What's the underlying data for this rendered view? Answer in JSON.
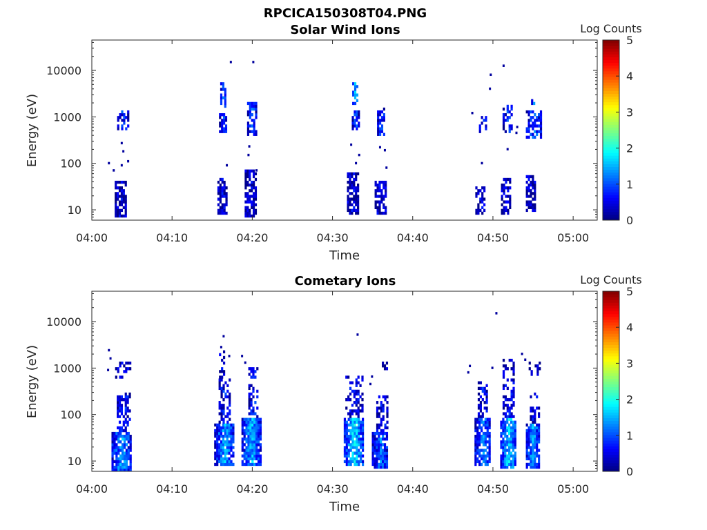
{
  "figure_title": "RPCICA150308T04.PNG",
  "colorbar": {
    "label": "Log Counts",
    "ticks": [
      "0",
      "1",
      "2",
      "3",
      "4",
      "5"
    ],
    "range": [
      0,
      5
    ],
    "colormap": "jet"
  },
  "chart_data": [
    {
      "type": "heatmap",
      "title": "Solar Wind Ions",
      "xlabel": "Time",
      "ylabel": "Energy (eV)",
      "x_tick_labels": [
        "04:00",
        "04:10",
        "04:20",
        "04:30",
        "04:40",
        "04:50",
        "05:00"
      ],
      "xlim": [
        "04:00",
        "05:03"
      ],
      "y_scale": "log",
      "y_tick_labels": [
        "10",
        "100",
        "1000",
        "10000"
      ],
      "ylim": [
        6,
        45000
      ],
      "z_label": "Log Counts",
      "zlim": [
        0,
        5
      ],
      "blobs": [
        {
          "t": 3.5,
          "w": 1.3,
          "emin": 7,
          "emax": 45,
          "lvl": 0.3,
          "d": 0.75
        },
        {
          "t": 3.8,
          "w": 1.3,
          "emin": 500,
          "emax": 1300,
          "lvl": 0.7,
          "d": 0.6
        },
        {
          "t": 16.2,
          "w": 1.1,
          "emin": 8,
          "emax": 50,
          "lvl": 0.35,
          "d": 0.7
        },
        {
          "t": 16.3,
          "w": 0.9,
          "emin": 450,
          "emax": 1200,
          "lvl": 0.7,
          "d": 0.6
        },
        {
          "t": 16.3,
          "w": 0.6,
          "emin": 1600,
          "emax": 5500,
          "lvl": 1.1,
          "d": 0.5
        },
        {
          "t": 19.7,
          "w": 1.3,
          "emin": 7,
          "emax": 70,
          "lvl": 0.3,
          "d": 0.7
        },
        {
          "t": 19.9,
          "w": 1.1,
          "emin": 400,
          "emax": 2100,
          "lvl": 0.9,
          "d": 0.6
        },
        {
          "t": 32.5,
          "w": 1.4,
          "emin": 8,
          "emax": 60,
          "lvl": 0.3,
          "d": 0.75
        },
        {
          "t": 32.8,
          "w": 0.8,
          "emin": 500,
          "emax": 1300,
          "lvl": 0.8,
          "d": 0.6
        },
        {
          "t": 32.8,
          "w": 0.7,
          "emin": 1800,
          "emax": 5500,
          "lvl": 1.5,
          "d": 0.6
        },
        {
          "t": 35.9,
          "w": 1.3,
          "emin": 8,
          "emax": 40,
          "lvl": 0.3,
          "d": 0.7
        },
        {
          "t": 36.0,
          "w": 0.9,
          "emin": 400,
          "emax": 1600,
          "lvl": 0.8,
          "d": 0.6
        },
        {
          "t": 48.4,
          "w": 1.2,
          "emin": 8,
          "emax": 30,
          "lvl": 0.3,
          "d": 0.6
        },
        {
          "t": 48.7,
          "w": 0.9,
          "emin": 450,
          "emax": 1100,
          "lvl": 0.7,
          "d": 0.5
        },
        {
          "t": 51.6,
          "w": 1.2,
          "emin": 8,
          "emax": 50,
          "lvl": 0.3,
          "d": 0.6
        },
        {
          "t": 51.8,
          "w": 1.2,
          "emin": 450,
          "emax": 1800,
          "lvl": 0.8,
          "d": 0.55
        },
        {
          "t": 54.7,
          "w": 1.2,
          "emin": 9,
          "emax": 55,
          "lvl": 0.3,
          "d": 0.6
        },
        {
          "t": 55.1,
          "w": 2.0,
          "emin": 350,
          "emax": 1400,
          "lvl": 0.9,
          "d": 0.65
        },
        {
          "t": 55.0,
          "w": 0.5,
          "emin": 1700,
          "emax": 2700,
          "lvl": 1.2,
          "d": 0.5
        }
      ],
      "scatter": [
        [
          2.0,
          100
        ],
        [
          2.6,
          70
        ],
        [
          3.6,
          270
        ],
        [
          3.8,
          180
        ],
        [
          3.6,
          90
        ],
        [
          4.4,
          110
        ],
        [
          17.2,
          15000
        ],
        [
          16.7,
          90
        ],
        [
          19.4,
          150
        ],
        [
          19.5,
          230
        ],
        [
          20.0,
          15000
        ],
        [
          20.4,
          70
        ],
        [
          32.2,
          250
        ],
        [
          32.8,
          100
        ],
        [
          33.2,
          150
        ],
        [
          35.8,
          220
        ],
        [
          36.4,
          190
        ],
        [
          36.6,
          80
        ],
        [
          47.3,
          1200
        ],
        [
          48.5,
          100
        ],
        [
          49.5,
          4000
        ],
        [
          49.6,
          8000
        ],
        [
          51.2,
          12500
        ],
        [
          52.8,
          450
        ],
        [
          52.9,
          600
        ],
        [
          51.7,
          200
        ]
      ]
    },
    {
      "type": "heatmap",
      "title": "Cometary Ions",
      "xlabel": "Time",
      "ylabel": "Energy (eV)",
      "x_tick_labels": [
        "04:00",
        "04:10",
        "04:20",
        "04:30",
        "04:40",
        "04:50",
        "05:00"
      ],
      "xlim": [
        "04:00",
        "05:03"
      ],
      "y_scale": "log",
      "y_tick_labels": [
        "10",
        "100",
        "1000",
        "10000"
      ],
      "ylim": [
        6,
        45000
      ],
      "z_label": "Log Counts",
      "zlim": [
        0,
        5
      ],
      "blobs": [
        {
          "t": 3.6,
          "w": 2.3,
          "emin": 6,
          "emax": 45,
          "lvl": 1.3,
          "d": 0.85
        },
        {
          "t": 3.9,
          "w": 1.6,
          "emin": 45,
          "emax": 300,
          "lvl": 0.6,
          "d": 0.55
        },
        {
          "t": 3.8,
          "w": 1.8,
          "emin": 600,
          "emax": 1300,
          "lvl": 0.3,
          "d": 0.35
        },
        {
          "t": 16.5,
          "w": 2.5,
          "emin": 8,
          "emax": 60,
          "lvl": 1.3,
          "d": 0.85
        },
        {
          "t": 16.5,
          "w": 1.4,
          "emin": 60,
          "emax": 600,
          "lvl": 0.6,
          "d": 0.5
        },
        {
          "t": 16.2,
          "w": 0.7,
          "emin": 600,
          "emax": 2500,
          "lvl": 0.3,
          "d": 0.4
        },
        {
          "t": 19.8,
          "w": 2.3,
          "emin": 8,
          "emax": 80,
          "lvl": 1.4,
          "d": 0.85
        },
        {
          "t": 20.1,
          "w": 1.2,
          "emin": 80,
          "emax": 1100,
          "lvl": 0.6,
          "d": 0.5
        },
        {
          "t": 32.6,
          "w": 2.4,
          "emin": 8,
          "emax": 80,
          "lvl": 1.6,
          "d": 0.85
        },
        {
          "t": 32.7,
          "w": 2.2,
          "emin": 80,
          "emax": 700,
          "lvl": 0.5,
          "d": 0.45
        },
        {
          "t": 35.9,
          "w": 2.0,
          "emin": 7,
          "emax": 40,
          "lvl": 1.0,
          "d": 0.85
        },
        {
          "t": 36.2,
          "w": 1.5,
          "emin": 40,
          "emax": 250,
          "lvl": 0.5,
          "d": 0.55
        },
        {
          "t": 36.3,
          "w": 0.8,
          "emin": 900,
          "emax": 1300,
          "lvl": 0.3,
          "d": 0.5
        },
        {
          "t": 48.7,
          "w": 2.0,
          "emin": 8,
          "emax": 80,
          "lvl": 1.1,
          "d": 0.8
        },
        {
          "t": 48.7,
          "w": 1.2,
          "emin": 80,
          "emax": 500,
          "lvl": 0.5,
          "d": 0.5
        },
        {
          "t": 51.9,
          "w": 2.0,
          "emin": 7,
          "emax": 80,
          "lvl": 1.5,
          "d": 0.85
        },
        {
          "t": 51.9,
          "w": 1.4,
          "emin": 80,
          "emax": 1500,
          "lvl": 0.5,
          "d": 0.45
        },
        {
          "t": 54.9,
          "w": 1.6,
          "emin": 7,
          "emax": 60,
          "lvl": 1.3,
          "d": 0.85
        },
        {
          "t": 55.2,
          "w": 1.2,
          "emin": 60,
          "emax": 300,
          "lvl": 0.5,
          "d": 0.5
        },
        {
          "t": 55.2,
          "w": 1.5,
          "emin": 700,
          "emax": 1300,
          "lvl": 0.3,
          "d": 0.4
        }
      ],
      "scatter": [
        [
          2.0,
          2400
        ],
        [
          2.2,
          1600
        ],
        [
          1.9,
          900
        ],
        [
          16.3,
          4800
        ],
        [
          16.0,
          2800
        ],
        [
          17.0,
          1800
        ],
        [
          18.6,
          1800
        ],
        [
          19.0,
          1300
        ],
        [
          33.0,
          5200
        ],
        [
          34.8,
          650
        ],
        [
          34.6,
          450
        ],
        [
          50.3,
          15000
        ],
        [
          47.0,
          1100
        ],
        [
          49.8,
          1000
        ],
        [
          53.5,
          2000
        ],
        [
          53.9,
          1500
        ],
        [
          46.8,
          800
        ]
      ]
    }
  ]
}
